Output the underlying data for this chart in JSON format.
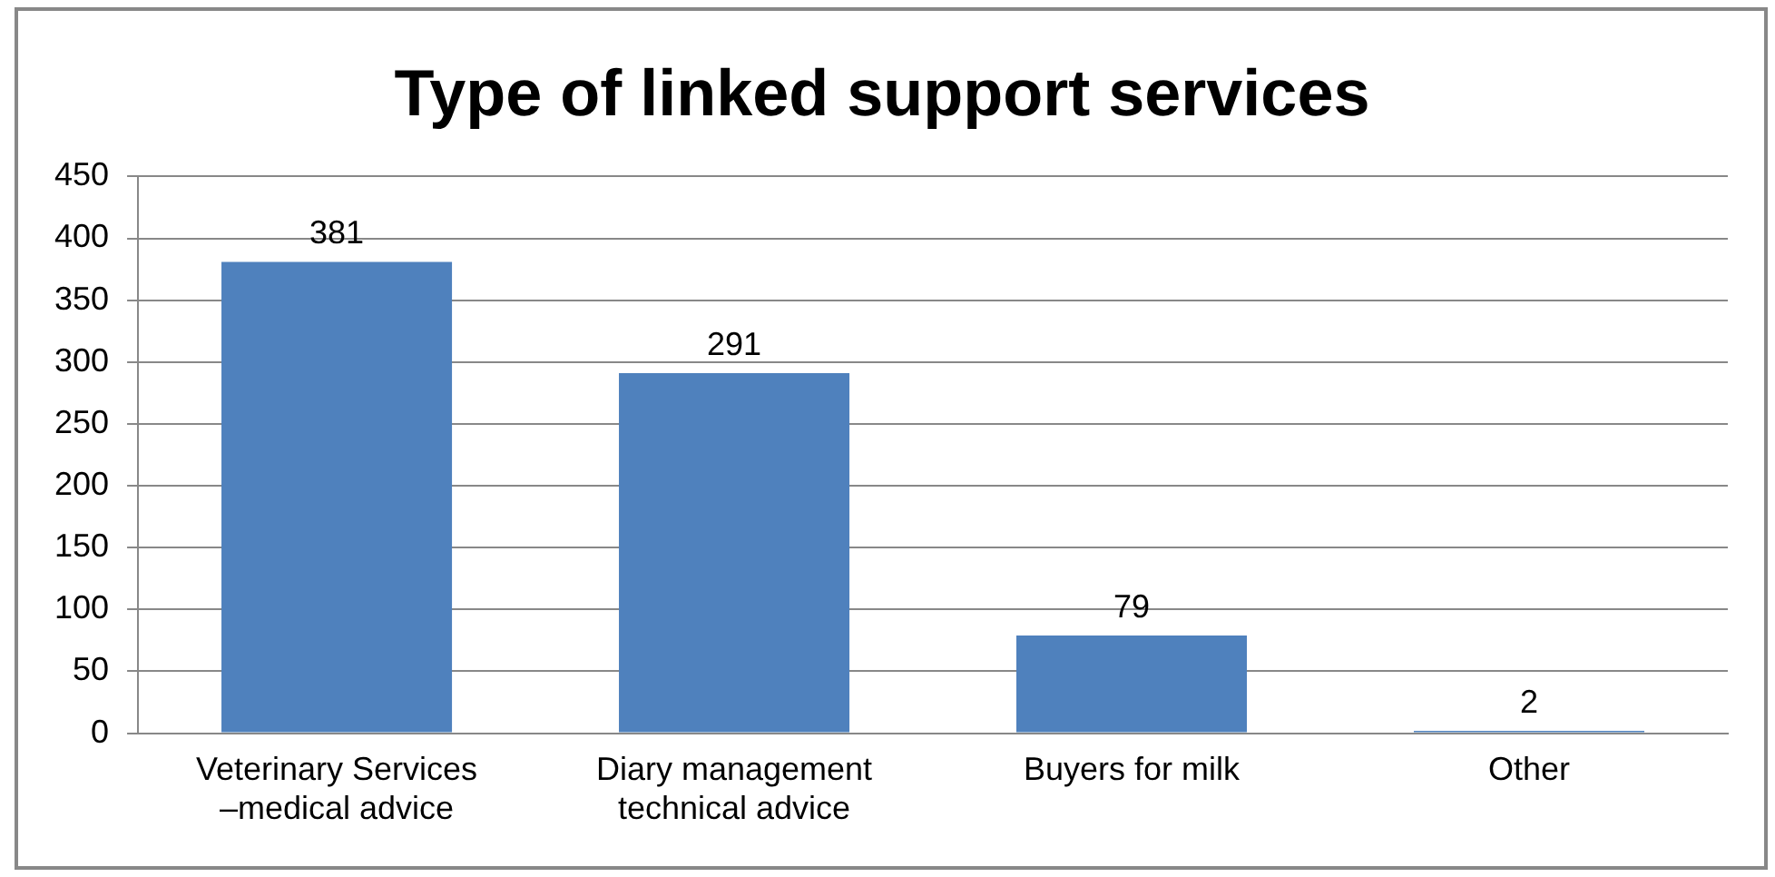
{
  "chart_data": {
    "type": "bar",
    "title": "Type of linked support services",
    "categories": [
      "Veterinary Services –medical advice",
      "Diary management technical advice",
      "Buyers for milk",
      "Other"
    ],
    "values": [
      381,
      291,
      79,
      2
    ],
    "color": "#4f81bd",
    "ylim": [
      0,
      450
    ],
    "yticks": [
      0,
      50,
      100,
      150,
      200,
      250,
      300,
      350,
      400,
      450
    ],
    "grid": "y",
    "data_labels": true
  }
}
